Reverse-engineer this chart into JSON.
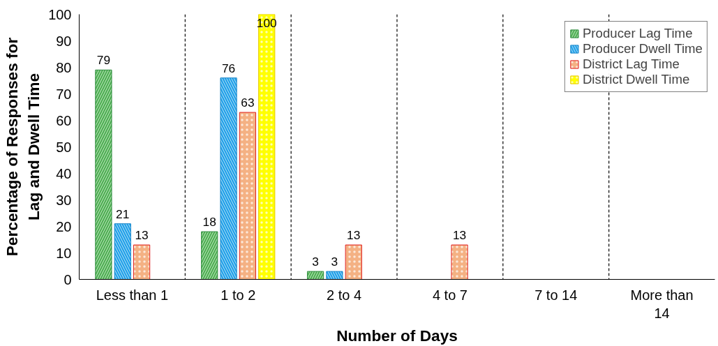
{
  "chart_data": {
    "type": "bar",
    "xlabel": "Number of Days",
    "ylabel": "Percentage of Responses for\nLag and Dwell Time",
    "categories": [
      "Less than 1",
      "1 to 2",
      "2 to 4",
      "4 to 7",
      "7 to 14",
      "More than 14"
    ],
    "series": [
      {
        "name": "Producer Lag Time",
        "color": "#4caf50",
        "values": [
          79,
          18,
          3,
          null,
          null,
          null
        ]
      },
      {
        "name": "Producer Dwell Time",
        "color": "#1fa0e8",
        "values": [
          21,
          76,
          3,
          null,
          null,
          null
        ]
      },
      {
        "name": "District Lag Time",
        "color": "#f4b183",
        "values": [
          13,
          63,
          13,
          13,
          null,
          null
        ]
      },
      {
        "name": "District Dwell Time",
        "color": "#ffff00",
        "values": [
          null,
          100,
          null,
          null,
          null,
          null
        ]
      }
    ],
    "ylim": [
      0,
      100
    ],
    "yticks": [
      0,
      10,
      20,
      30,
      40,
      50,
      60,
      70,
      80,
      90,
      100
    ],
    "grid": "x",
    "legend": "top right",
    "data_labels": true
  }
}
